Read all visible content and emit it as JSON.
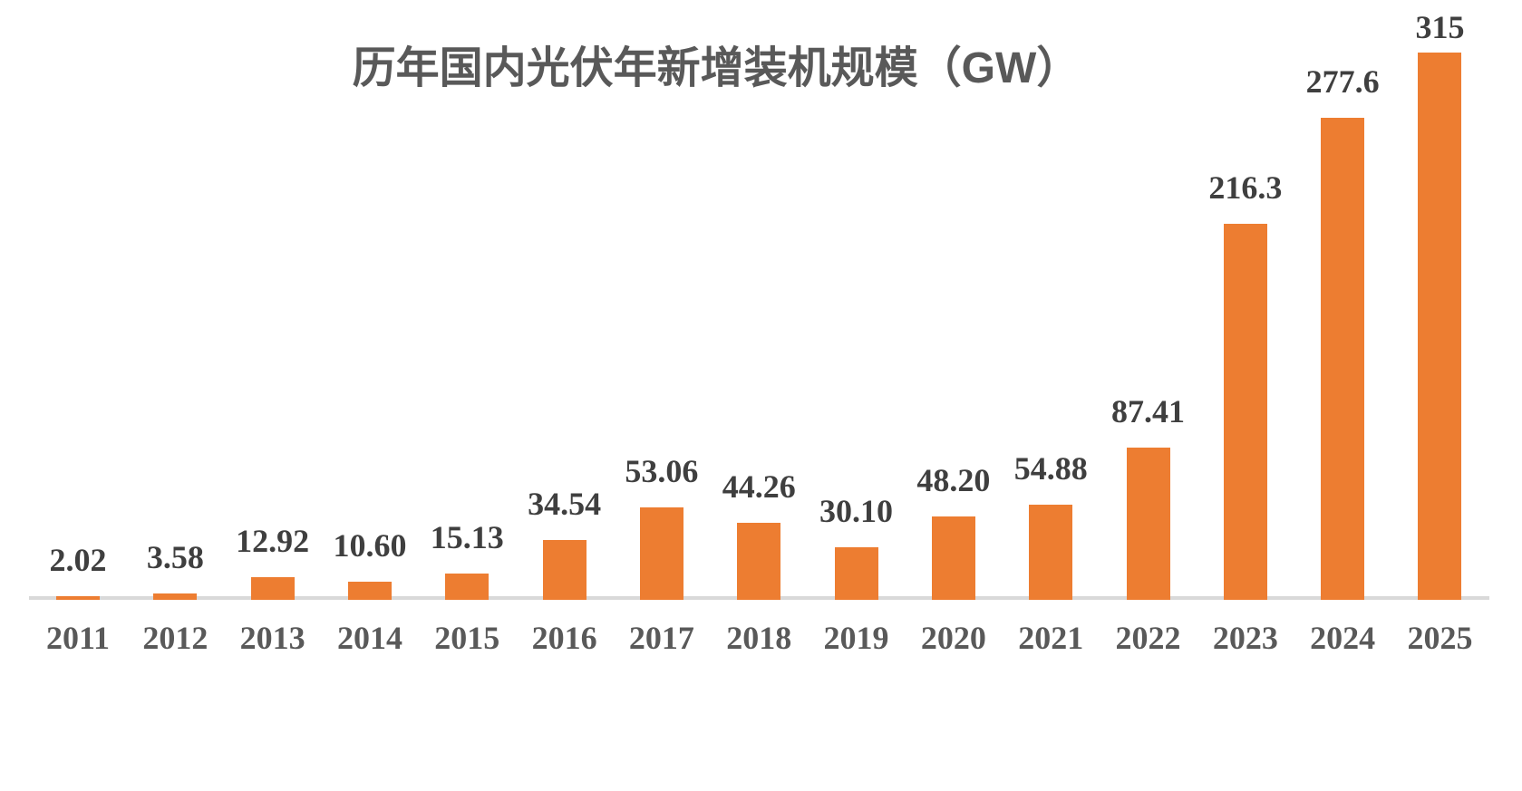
{
  "chart_data": {
    "type": "bar",
    "title": "历年国内光伏年新增装机规模（GW）",
    "categories": [
      "2011",
      "2012",
      "2013",
      "2014",
      "2015",
      "2016",
      "2017",
      "2018",
      "2019",
      "2020",
      "2021",
      "2022",
      "2023",
      "2024",
      "2025"
    ],
    "values": [
      2.02,
      3.58,
      12.92,
      10.6,
      15.13,
      34.54,
      53.06,
      44.26,
      30.1,
      48.2,
      54.88,
      87.41,
      216.3,
      277.6,
      315
    ],
    "value_labels": [
      "2.02",
      "3.58",
      "12.92",
      "10.60",
      "15.13",
      "34.54",
      "53.06",
      "44.26",
      "30.10",
      "48.20",
      "54.88",
      "87.41",
      "216.3",
      "277.6",
      "315"
    ],
    "xlabel": "",
    "ylabel": "",
    "ylim": [
      0,
      340
    ],
    "grid": false,
    "legend": "none",
    "data_labels_position": "outside-end",
    "colors": {
      "bar": "#ED7D31",
      "value_label": "#3F3F3F",
      "axis_tick_label": "#595959",
      "title": "#595959",
      "axis_line": "#D9D9D9",
      "background": "#FFFFFF"
    }
  }
}
